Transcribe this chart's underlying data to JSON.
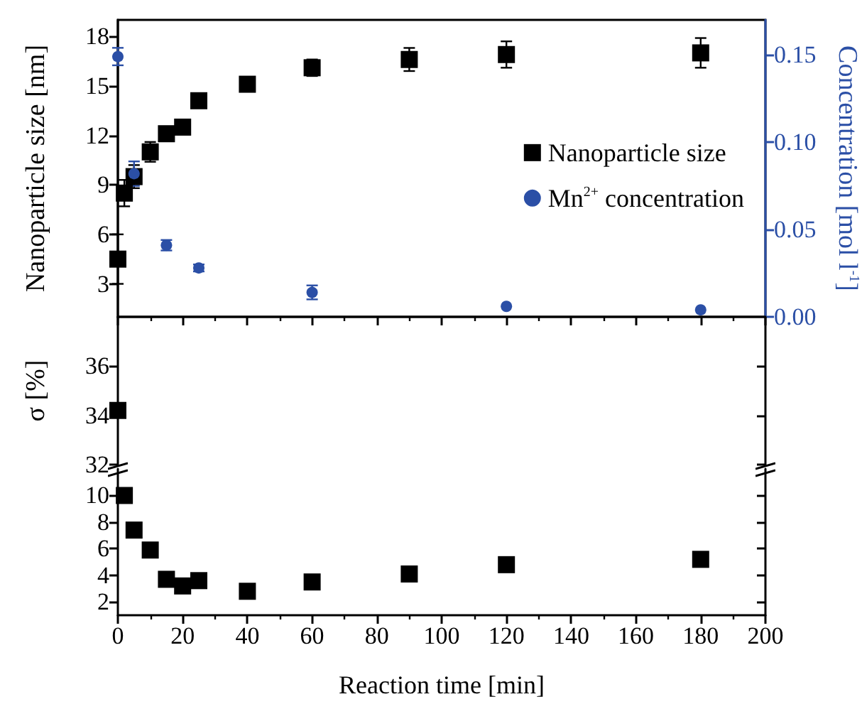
{
  "chart_data": [
    {
      "type": "scatter",
      "ylabel": "Nanoparticle size [nm]",
      "y2label": "Concentration [mol l$^{-1}$]",
      "series": [
        {
          "name": "Nanoparticle size",
          "color": "#000000",
          "marker": "square",
          "x": [
            0,
            2,
            5,
            10,
            15,
            20,
            25,
            40,
            60,
            90,
            120,
            180
          ],
          "values": [
            4.5,
            8.5,
            9.5,
            11.0,
            12.1,
            12.5,
            14.1,
            15.1,
            16.1,
            16.6,
            16.9,
            17.0
          ],
          "errors": [
            1.5,
            0.8,
            0.7,
            0.6,
            0.3,
            0.2,
            0.4,
            0.2,
            0.5,
            0.7,
            0.8,
            0.9
          ]
        },
        {
          "name": "Mn$^{2+}$ concentration",
          "color": "#2b4fa6",
          "marker": "circle",
          "axis": "y2",
          "x": [
            0,
            5,
            15,
            25,
            60,
            120,
            180
          ],
          "values": [
            0.149,
            0.082,
            0.041,
            0.028,
            0.014,
            0.006,
            0.004
          ],
          "errors": [
            0.005,
            0.007,
            0.003,
            0.002,
            0.004,
            null,
            null
          ]
        }
      ],
      "xlim": [
        0,
        200
      ],
      "xticks": [
        0,
        20,
        40,
        60,
        80,
        100,
        120,
        140,
        160,
        180,
        200
      ],
      "ylim": [
        1,
        19
      ],
      "yticks": [
        3,
        6,
        9,
        12,
        15,
        18
      ],
      "y2lim": [
        0,
        0.17
      ],
      "y2ticks": [
        {
          "value": 0,
          "label": "0.00"
        },
        {
          "value": 0.05,
          "label": "0.05"
        },
        {
          "value": 0.1,
          "label": "0.10"
        },
        {
          "value": 0.15,
          "label": "0.15"
        }
      ],
      "legend": "right",
      "tick_labels": "y"
    },
    {
      "type": "scatter",
      "ylabel": "σ [%]",
      "series": [
        {
          "color": "#000000",
          "marker": "square",
          "x": [
            0
          ],
          "values": [
            34.2
          ]
        }
      ],
      "xlim": [
        0,
        200
      ],
      "ylim": [
        32,
        38
      ],
      "yticks": [
        32,
        34,
        36
      ],
      "tick_labels": "y"
    },
    {
      "type": "scatter",
      "xlabel": "Reaction time [min]",
      "series": [
        {
          "color": "#000000",
          "marker": "square",
          "x": [
            2,
            5,
            10,
            15,
            20,
            25,
            40,
            60,
            90,
            120,
            180
          ],
          "values": [
            10.0,
            7.4,
            5.9,
            3.7,
            3.2,
            3.6,
            2.8,
            3.5,
            4.1,
            4.8,
            5.2
          ]
        }
      ],
      "xlim": [
        0,
        200
      ],
      "xticks": [
        0,
        20,
        40,
        60,
        80,
        100,
        120,
        140,
        160,
        180,
        200
      ],
      "ylim": [
        1,
        12
      ],
      "yticks": [
        2,
        4,
        6,
        8,
        10
      ]
    }
  ]
}
